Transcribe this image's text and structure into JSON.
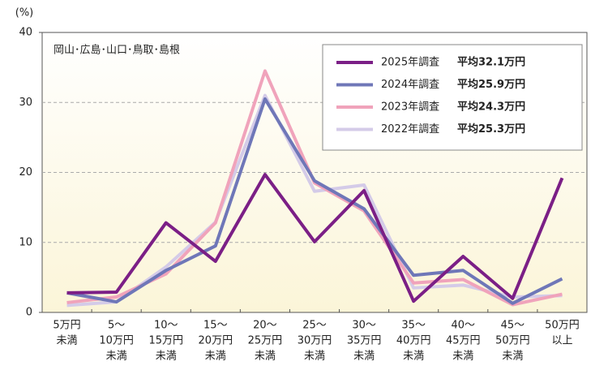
{
  "chart_data": {
    "type": "line",
    "y_label": "(%)",
    "annotation": "岡山･広島･山口･鳥取･島根",
    "categories": [
      [
        "5万円",
        "未満"
      ],
      [
        "5〜",
        "10万円",
        "未満"
      ],
      [
        "10〜",
        "15万円",
        "未満"
      ],
      [
        "15〜",
        "20万円",
        "未満"
      ],
      [
        "20〜",
        "25万円",
        "未満"
      ],
      [
        "25〜",
        "30万円",
        "未満"
      ],
      [
        "30〜",
        "35万円",
        "未満"
      ],
      [
        "35〜",
        "40万円",
        "未満"
      ],
      [
        "40〜",
        "45万円",
        "未満"
      ],
      [
        "45〜",
        "50万円",
        "未満"
      ],
      [
        "50万円",
        "以上"
      ]
    ],
    "series": [
      {
        "name": "2022年調査",
        "average_label": "平均25.3万円",
        "color": "#d4cbe8",
        "values": [
          1.0,
          1.5,
          6.5,
          12.9,
          31.0,
          17.3,
          18.2,
          3.5,
          3.9,
          2.2,
          2.4
        ]
      },
      {
        "name": "2023年調査",
        "average_label": "平均24.3万円",
        "color": "#f0a3bb",
        "values": [
          1.4,
          2.2,
          5.5,
          12.8,
          34.5,
          18.5,
          14.5,
          4.2,
          4.7,
          1.1,
          2.6
        ]
      },
      {
        "name": "2024年調査",
        "average_label": "平均25.9万円",
        "color": "#6f77b8",
        "values": [
          2.8,
          1.5,
          6.0,
          9.5,
          30.5,
          18.8,
          14.8,
          5.3,
          6.0,
          1.3,
          4.8
        ]
      },
      {
        "name": "2025年調査",
        "average_label": "平均32.1万円",
        "color": "#7b1f86",
        "values": [
          2.8,
          2.9,
          12.8,
          7.3,
          19.7,
          10.1,
          17.4,
          1.6,
          8.0,
          2.0,
          19.2
        ]
      }
    ],
    "ylim": [
      0,
      40
    ],
    "yticks": [
      0,
      10,
      20,
      30,
      40
    ],
    "grid": true
  }
}
